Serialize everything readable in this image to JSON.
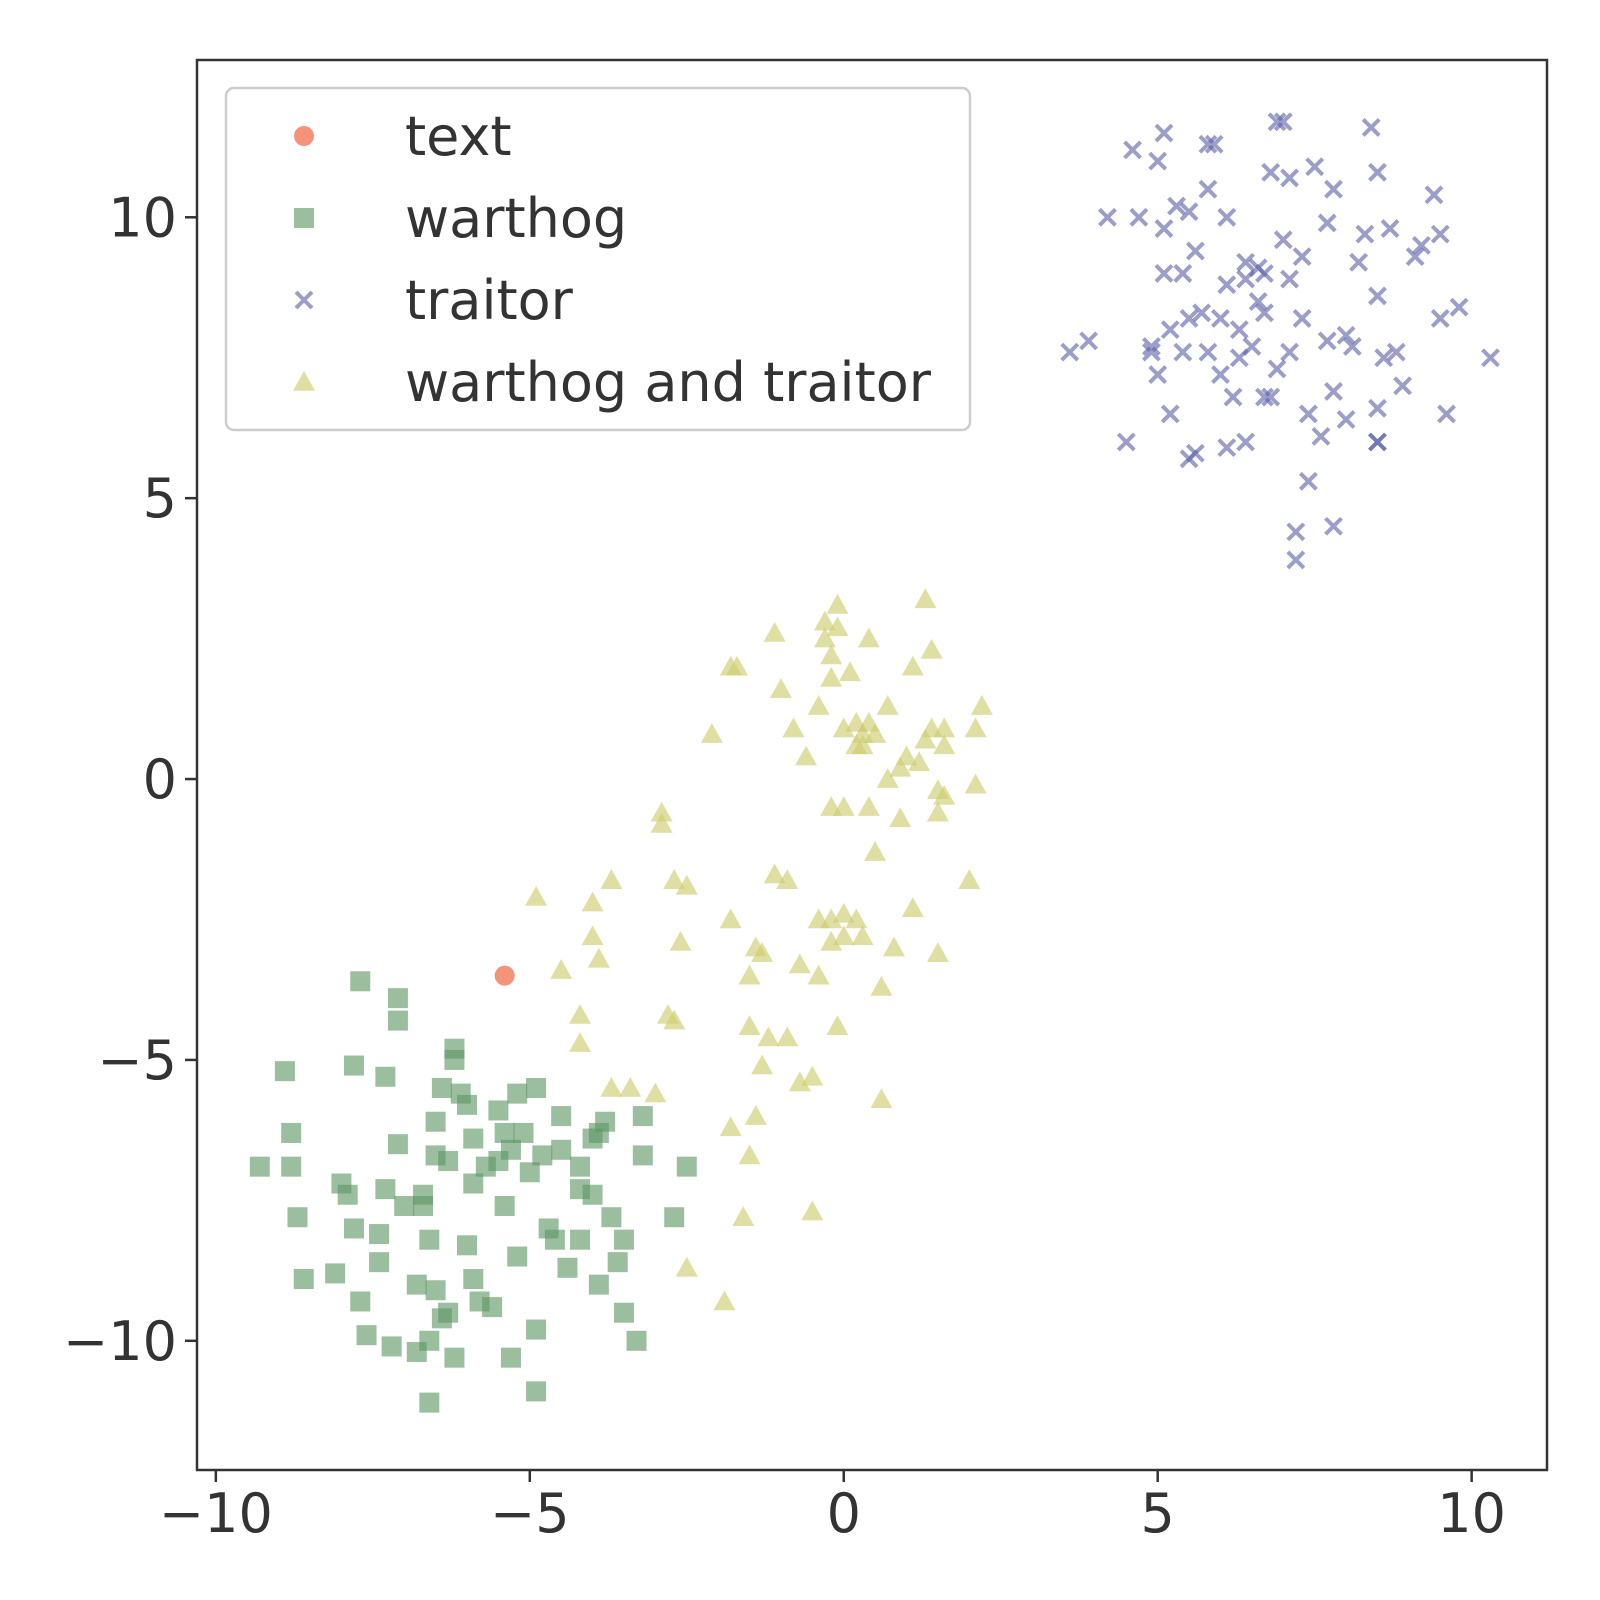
{
  "chart_data": {
    "type": "scatter",
    "title": "",
    "xlabel": "",
    "ylabel": "",
    "xlim": [
      -10.3,
      11.2
    ],
    "ylim": [
      -12.3,
      12.8
    ],
    "x_ticks": [
      -10,
      -5,
      0,
      5,
      10
    ],
    "y_ticks": [
      -10,
      -5,
      0,
      5,
      10
    ],
    "x_tick_labels": [
      "−10",
      "−5",
      "0",
      "5",
      "10"
    ],
    "y_tick_labels": [
      "−10",
      "−5",
      "0",
      "5",
      "10"
    ],
    "grid": false,
    "legend_position": "top-left",
    "series": [
      {
        "name": "text",
        "marker": "circle",
        "color": "#f4876b",
        "points": [
          [
            -5.4,
            -3.5
          ]
        ]
      },
      {
        "name": "warthog",
        "marker": "square",
        "color": "#5e9664",
        "points": [
          [
            -9.3,
            -6.9
          ],
          [
            -8.9,
            -5.2
          ],
          [
            -8.8,
            -6.3
          ],
          [
            -8.8,
            -6.9
          ],
          [
            -8.7,
            -7.8
          ],
          [
            -8.6,
            -8.9
          ],
          [
            -8.1,
            -8.8
          ],
          [
            -8.0,
            -7.2
          ],
          [
            -7.9,
            -7.4
          ],
          [
            -7.8,
            -8.0
          ],
          [
            -7.8,
            -5.1
          ],
          [
            -7.7,
            -3.6
          ],
          [
            -7.7,
            -9.3
          ],
          [
            -7.6,
            -9.9
          ],
          [
            -7.4,
            -8.1
          ],
          [
            -7.4,
            -8.6
          ],
          [
            -7.3,
            -5.3
          ],
          [
            -7.3,
            -7.3
          ],
          [
            -7.2,
            -10.1
          ],
          [
            -7.1,
            -3.9
          ],
          [
            -7.1,
            -4.3
          ],
          [
            -7.1,
            -6.5
          ],
          [
            -7.0,
            -7.6
          ],
          [
            -6.8,
            -10.2
          ],
          [
            -6.8,
            -9.0
          ],
          [
            -6.7,
            -7.6
          ],
          [
            -6.7,
            -7.4
          ],
          [
            -6.6,
            -8.2
          ],
          [
            -6.6,
            -10.0
          ],
          [
            -6.5,
            -6.7
          ],
          [
            -6.5,
            -6.1
          ],
          [
            -6.5,
            -9.1
          ],
          [
            -6.4,
            -9.6
          ],
          [
            -6.4,
            -5.5
          ],
          [
            -6.3,
            -9.5
          ],
          [
            -6.3,
            -6.8
          ],
          [
            -6.2,
            -4.8
          ],
          [
            -6.2,
            -5.0
          ],
          [
            -6.1,
            -5.6
          ],
          [
            -6.0,
            -5.8
          ],
          [
            -6.0,
            -8.3
          ],
          [
            -5.9,
            -6.4
          ],
          [
            -5.9,
            -7.2
          ],
          [
            -5.9,
            -8.9
          ],
          [
            -5.8,
            -9.3
          ],
          [
            -5.7,
            -6.9
          ],
          [
            -5.6,
            -9.4
          ],
          [
            -5.5,
            -6.8
          ],
          [
            -5.5,
            -5.9
          ],
          [
            -5.4,
            -6.3
          ],
          [
            -5.4,
            -7.6
          ],
          [
            -5.3,
            -6.6
          ],
          [
            -5.3,
            -10.3
          ],
          [
            -5.2,
            -8.5
          ],
          [
            -5.2,
            -5.6
          ],
          [
            -5.1,
            -6.3
          ],
          [
            -5.0,
            -7.0
          ],
          [
            -4.9,
            -5.5
          ],
          [
            -4.9,
            -10.9
          ],
          [
            -4.9,
            -9.8
          ],
          [
            -4.8,
            -6.7
          ],
          [
            -4.7,
            -8.0
          ],
          [
            -4.6,
            -8.2
          ],
          [
            -4.5,
            -6.0
          ],
          [
            -4.5,
            -6.6
          ],
          [
            -4.4,
            -8.7
          ],
          [
            -4.2,
            -6.9
          ],
          [
            -4.2,
            -7.3
          ],
          [
            -4.2,
            -8.2
          ],
          [
            -4.0,
            -6.4
          ],
          [
            -4.0,
            -7.4
          ],
          [
            -3.9,
            -6.3
          ],
          [
            -3.9,
            -9.0
          ],
          [
            -3.8,
            -6.1
          ],
          [
            -3.7,
            -7.8
          ],
          [
            -3.6,
            -8.6
          ],
          [
            -3.5,
            -8.2
          ],
          [
            -3.5,
            -9.5
          ],
          [
            -3.3,
            -10.0
          ],
          [
            -3.2,
            -6.0
          ],
          [
            -3.2,
            -6.7
          ],
          [
            -2.7,
            -7.8
          ],
          [
            -2.5,
            -6.9
          ],
          [
            -6.2,
            -10.3
          ],
          [
            -6.6,
            -11.1
          ]
        ]
      },
      {
        "name": "traitor",
        "marker": "x",
        "color": "#5c62a8",
        "points": [
          [
            3.6,
            7.6
          ],
          [
            3.9,
            7.8
          ],
          [
            4.2,
            10.0
          ],
          [
            4.5,
            6.0
          ],
          [
            4.6,
            11.2
          ],
          [
            4.7,
            10.0
          ],
          [
            4.9,
            7.7
          ],
          [
            5.0,
            7.2
          ],
          [
            5.0,
            11.0
          ],
          [
            5.1,
            9.0
          ],
          [
            5.1,
            9.8
          ],
          [
            5.2,
            6.5
          ],
          [
            5.2,
            8.0
          ],
          [
            5.3,
            10.2
          ],
          [
            5.4,
            7.6
          ],
          [
            5.4,
            9.0
          ],
          [
            5.5,
            5.7
          ],
          [
            5.5,
            8.2
          ],
          [
            5.6,
            5.8
          ],
          [
            5.6,
            9.4
          ],
          [
            5.7,
            8.3
          ],
          [
            5.8,
            7.6
          ],
          [
            5.8,
            10.5
          ],
          [
            5.9,
            11.3
          ],
          [
            6.0,
            7.2
          ],
          [
            6.0,
            8.2
          ],
          [
            6.1,
            5.9
          ],
          [
            6.1,
            10.0
          ],
          [
            6.2,
            6.8
          ],
          [
            6.3,
            7.5
          ],
          [
            6.3,
            8.0
          ],
          [
            6.4,
            6.0
          ],
          [
            6.4,
            9.2
          ],
          [
            6.5,
            7.7
          ],
          [
            6.6,
            8.5
          ],
          [
            6.6,
            9.1
          ],
          [
            6.7,
            9.0
          ],
          [
            6.8,
            6.8
          ],
          [
            6.8,
            10.8
          ],
          [
            6.9,
            7.3
          ],
          [
            7.0,
            9.6
          ],
          [
            7.0,
            11.7
          ],
          [
            7.1,
            8.9
          ],
          [
            7.1,
            7.6
          ],
          [
            7.2,
            4.4
          ],
          [
            7.2,
            3.9
          ],
          [
            7.3,
            9.3
          ],
          [
            7.4,
            5.3
          ],
          [
            7.4,
            6.5
          ],
          [
            7.5,
            10.9
          ],
          [
            7.6,
            6.1
          ],
          [
            7.7,
            7.8
          ],
          [
            7.8,
            6.9
          ],
          [
            7.8,
            4.5
          ],
          [
            8.0,
            6.4
          ],
          [
            8.1,
            7.7
          ],
          [
            8.2,
            9.2
          ],
          [
            8.3,
            9.7
          ],
          [
            8.4,
            11.6
          ],
          [
            8.5,
            6.0
          ],
          [
            8.5,
            6.6
          ],
          [
            8.6,
            7.5
          ],
          [
            8.7,
            9.8
          ],
          [
            8.8,
            7.6
          ],
          [
            8.9,
            7.0
          ],
          [
            9.1,
            9.3
          ],
          [
            9.2,
            9.5
          ],
          [
            9.4,
            10.4
          ],
          [
            9.5,
            9.7
          ],
          [
            9.6,
            6.5
          ],
          [
            9.8,
            8.4
          ],
          [
            10.3,
            7.5
          ],
          [
            5.1,
            11.5
          ],
          [
            5.8,
            11.3
          ],
          [
            6.9,
            11.7
          ],
          [
            7.8,
            10.5
          ],
          [
            8.5,
            10.8
          ],
          [
            6.1,
            8.8
          ],
          [
            6.7,
            8.3
          ],
          [
            7.3,
            8.2
          ],
          [
            8.0,
            7.9
          ],
          [
            6.7,
            6.8
          ],
          [
            7.1,
            10.7
          ],
          [
            8.5,
            6.0
          ],
          [
            4.9,
            7.6
          ],
          [
            9.5,
            8.2
          ],
          [
            5.5,
            10.1
          ],
          [
            6.4,
            8.9
          ],
          [
            7.7,
            9.9
          ],
          [
            8.5,
            8.6
          ]
        ]
      },
      {
        "name": "warthog and traitor",
        "marker": "triangle",
        "color": "#cdcc6a",
        "points": [
          [
            -4.9,
            -2.1
          ],
          [
            -4.5,
            -3.4
          ],
          [
            -4.2,
            -4.2
          ],
          [
            -4.2,
            -4.7
          ],
          [
            -4.0,
            -2.8
          ],
          [
            -4.0,
            -2.2
          ],
          [
            -3.9,
            -3.2
          ],
          [
            -3.7,
            -1.8
          ],
          [
            -3.7,
            -5.5
          ],
          [
            -3.4,
            -5.5
          ],
          [
            -3.0,
            -5.6
          ],
          [
            -2.9,
            -0.8
          ],
          [
            -2.9,
            -0.6
          ],
          [
            -2.8,
            -4.2
          ],
          [
            -2.7,
            -4.3
          ],
          [
            -2.7,
            -1.8
          ],
          [
            -2.6,
            -2.9
          ],
          [
            -2.5,
            -1.9
          ],
          [
            -2.5,
            -8.7
          ],
          [
            -2.1,
            0.8
          ],
          [
            -1.9,
            -9.3
          ],
          [
            -1.8,
            -6.2
          ],
          [
            -1.8,
            2.0
          ],
          [
            -1.8,
            -2.5
          ],
          [
            -1.7,
            2.0
          ],
          [
            -1.6,
            -7.8
          ],
          [
            -1.5,
            -4.4
          ],
          [
            -1.5,
            -3.5
          ],
          [
            -1.5,
            -6.7
          ],
          [
            -1.4,
            -3.0
          ],
          [
            -1.4,
            -6.0
          ],
          [
            -1.3,
            -3.1
          ],
          [
            -1.3,
            -5.1
          ],
          [
            -1.2,
            -4.6
          ],
          [
            -1.1,
            2.6
          ],
          [
            -1.1,
            -1.7
          ],
          [
            -1.0,
            1.6
          ],
          [
            -0.9,
            -1.8
          ],
          [
            -0.9,
            -4.6
          ],
          [
            -0.8,
            0.9
          ],
          [
            -0.7,
            -3.3
          ],
          [
            -0.7,
            -5.4
          ],
          [
            -0.6,
            0.4
          ],
          [
            -0.5,
            -5.3
          ],
          [
            -0.5,
            -7.7
          ],
          [
            -0.4,
            1.3
          ],
          [
            -0.4,
            -3.5
          ],
          [
            -0.3,
            2.8
          ],
          [
            -0.3,
            2.5
          ],
          [
            -0.2,
            2.2
          ],
          [
            -0.2,
            1.8
          ],
          [
            -0.2,
            -0.5
          ],
          [
            -0.2,
            -2.9
          ],
          [
            -0.2,
            -2.5
          ],
          [
            -0.1,
            3.1
          ],
          [
            -0.1,
            2.7
          ],
          [
            -0.1,
            -4.4
          ],
          [
            0.0,
            -0.5
          ],
          [
            0.0,
            0.9
          ],
          [
            0.0,
            -2.4
          ],
          [
            0.0,
            -2.8
          ],
          [
            0.1,
            1.9
          ],
          [
            0.2,
            1.0
          ],
          [
            0.2,
            -2.5
          ],
          [
            0.3,
            0.6
          ],
          [
            0.3,
            0.8
          ],
          [
            0.3,
            -2.8
          ],
          [
            0.4,
            1.0
          ],
          [
            0.4,
            -0.5
          ],
          [
            0.4,
            2.5
          ],
          [
            0.5,
            0.8
          ],
          [
            0.5,
            -1.3
          ],
          [
            0.6,
            -5.7
          ],
          [
            0.6,
            -3.7
          ],
          [
            0.7,
            0.0
          ],
          [
            0.7,
            1.3
          ],
          [
            0.9,
            0.2
          ],
          [
            0.9,
            -0.7
          ],
          [
            1.0,
            0.4
          ],
          [
            1.1,
            2.0
          ],
          [
            1.1,
            -2.3
          ],
          [
            1.2,
            0.3
          ],
          [
            1.3,
            3.2
          ],
          [
            1.3,
            0.7
          ],
          [
            1.4,
            0.9
          ],
          [
            1.4,
            2.3
          ],
          [
            1.5,
            -0.6
          ],
          [
            1.5,
            -3.1
          ],
          [
            1.5,
            -0.2
          ],
          [
            1.6,
            0.6
          ],
          [
            1.6,
            0.9
          ],
          [
            1.6,
            -0.3
          ],
          [
            2.0,
            -1.8
          ],
          [
            2.1,
            -0.1
          ],
          [
            2.1,
            0.9
          ],
          [
            2.2,
            1.3
          ],
          [
            0.2,
            0.6
          ],
          [
            -0.4,
            -2.5
          ],
          [
            0.8,
            -3.0
          ]
        ]
      }
    ]
  }
}
